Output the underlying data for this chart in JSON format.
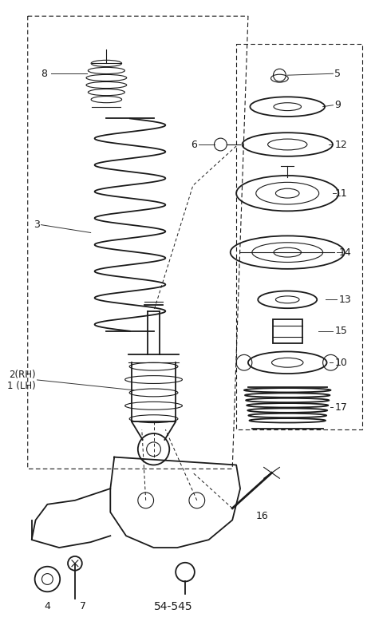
{
  "bg_color": "#ffffff",
  "line_color": "#1a1a1a",
  "fig_width": 4.8,
  "fig_height": 7.98,
  "dpi": 100,
  "label_fs": 9,
  "bold_label_fs": 10
}
